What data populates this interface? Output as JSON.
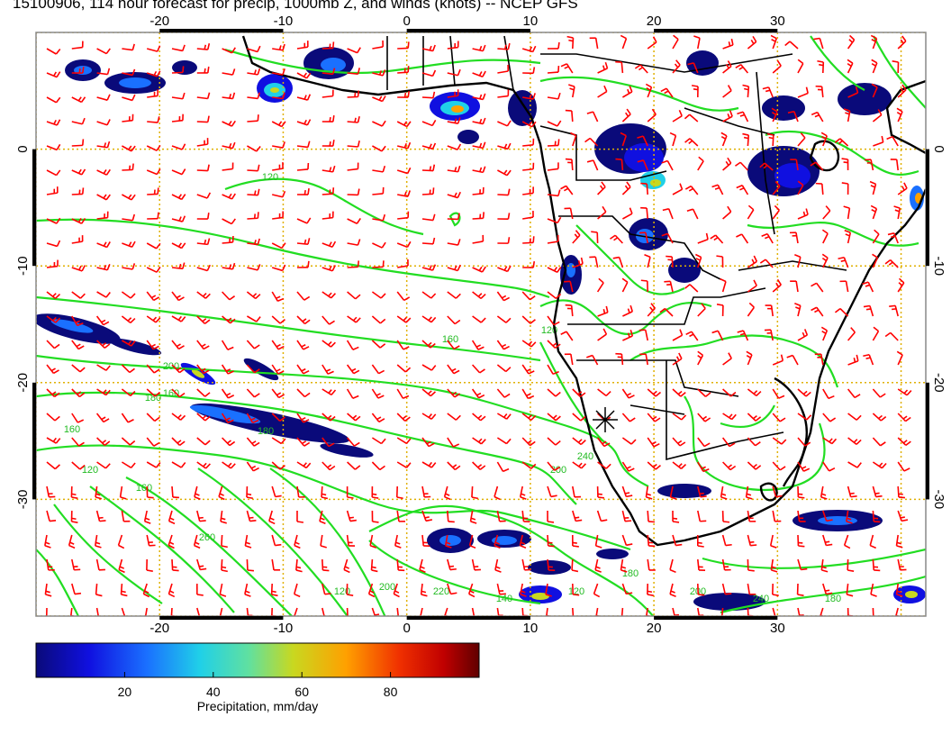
{
  "title": "15100906, 114 hour forecast for precip, 1000mb Z, and winds (knots) -- NCEP GFS",
  "map": {
    "lon_range": [
      -30,
      42
    ],
    "lat_range": [
      -40,
      10
    ],
    "lon_ticks_top": [
      "-20",
      "-10",
      "0",
      "10",
      "20",
      "30"
    ],
    "lon_ticks_bottom": [
      "-20",
      "-10",
      "0",
      "10",
      "20",
      "30"
    ],
    "lat_ticks_left": [
      "0",
      "-10",
      "-20",
      "-30"
    ],
    "lat_ticks_right": [
      "0",
      "-10",
      "-20",
      "-30"
    ],
    "grid_color": "#e0b000",
    "wind_barb_color": "#ff0000",
    "contour_color": "#22dd22",
    "coastline_color": "#000000",
    "contour_labels": [
      "120",
      "160",
      "200",
      "180",
      "160",
      "120",
      "160",
      "180",
      "200",
      "240",
      "260",
      "120",
      "200",
      "220",
      "140",
      "120",
      "180",
      "200",
      "240",
      "180",
      "120",
      "160"
    ]
  },
  "colorbar": {
    "label": "Precipitation, mm/day",
    "ticks": [
      "20",
      "40",
      "60",
      "80"
    ],
    "range": [
      0,
      100
    ],
    "colors": [
      "#0a0a7a",
      "#1010e0",
      "#1a70ff",
      "#20d0e8",
      "#60e0a0",
      "#c8d820",
      "#ffa000",
      "#f03000",
      "#c00000",
      "#600000"
    ]
  }
}
